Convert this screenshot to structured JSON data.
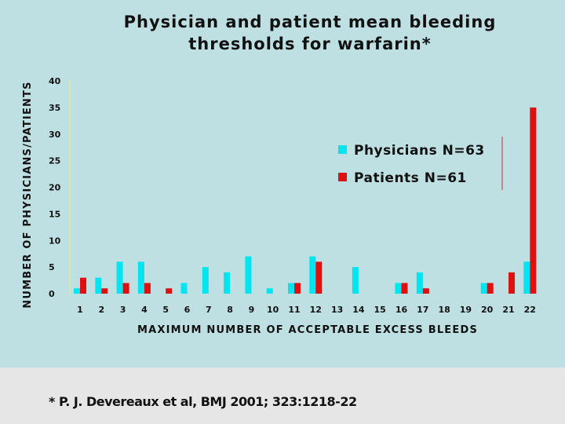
{
  "chart_data": {
    "type": "bar",
    "title": [
      "Physician and patient mean bleeding",
      "thresholds for warfarin*"
    ],
    "xlabel": "MAXIMUM NUMBER OF ACCEPTABLE EXCESS BLEEDS",
    "ylabel": "NUMBER OF PHYSICIANS/PATIENTS",
    "categories": [
      "1",
      "2",
      "3",
      "4",
      "5",
      "6",
      "7",
      "8",
      "9",
      "10",
      "11",
      "12",
      "13",
      "14",
      "15",
      "16",
      "17",
      "18",
      "19",
      "20",
      "21",
      "22"
    ],
    "yticks": [
      "0",
      "5",
      "10",
      "15",
      "20",
      "25",
      "30",
      "35",
      "40"
    ],
    "ylim": [
      0,
      40
    ],
    "series": [
      {
        "name": "Physicians N=63",
        "color": "#00e5f0",
        "values": [
          1,
          3,
          6,
          6,
          0,
          2,
          5,
          4,
          7,
          1,
          2,
          7,
          0,
          5,
          0,
          2,
          4,
          0,
          0,
          2,
          0,
          6
        ]
      },
      {
        "name": "Patients N=61",
        "color": "#e01010",
        "values": [
          3,
          1,
          2,
          2,
          1,
          0,
          0,
          0,
          0,
          0,
          2,
          6,
          0,
          0,
          0,
          2,
          1,
          0,
          0,
          2,
          4,
          35
        ]
      }
    ],
    "legend_position": "right",
    "grid": false
  },
  "citation": "* P. J. Devereaux et al, BMJ 2001; 323:1218-22"
}
